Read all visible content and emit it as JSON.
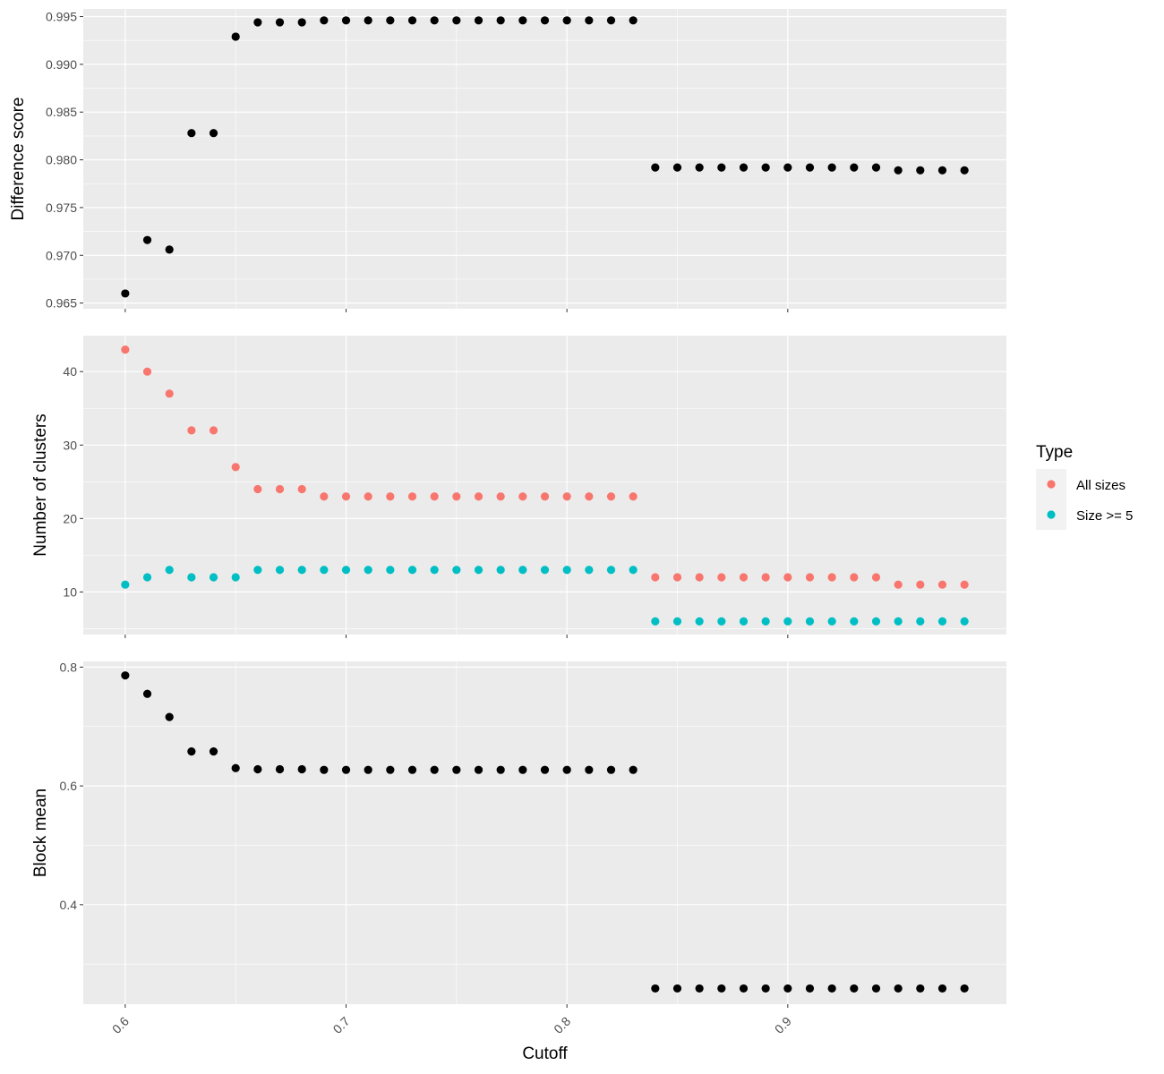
{
  "chart_data": {
    "type": "scatter",
    "title": "",
    "xlabel": "Cutoff",
    "x_ticks": [
      "0.6",
      "0.7",
      "0.8",
      "0.9"
    ],
    "x_tick_values": [
      0.6,
      0.7,
      0.8,
      0.9
    ],
    "xlim": [
      0.581,
      0.999
    ],
    "x": [
      0.6,
      0.61,
      0.62,
      0.63,
      0.64,
      0.65,
      0.66,
      0.67,
      0.68,
      0.69,
      0.7,
      0.71,
      0.72,
      0.73,
      0.74,
      0.75,
      0.76,
      0.77,
      0.78,
      0.79,
      0.8,
      0.81,
      0.82,
      0.83,
      0.84,
      0.85,
      0.86,
      0.87,
      0.88,
      0.89,
      0.9,
      0.91,
      0.92,
      0.93,
      0.94,
      0.95,
      0.96,
      0.97,
      0.98
    ],
    "grid": true,
    "legend_position": "right",
    "legend": {
      "title": "Type",
      "entries": [
        {
          "label": "All sizes",
          "color": "#F8766D"
        },
        {
          "label": "Size >= 5",
          "color": "#00BFC4"
        }
      ]
    },
    "panels": [
      {
        "ylabel": "Difference score",
        "ylim": [
          0.9644,
          0.9958
        ],
        "y_ticks": [
          "0.965",
          "0.970",
          "0.975",
          "0.980",
          "0.985",
          "0.990",
          "0.995"
        ],
        "y_tick_values": [
          0.965,
          0.97,
          0.975,
          0.98,
          0.985,
          0.99,
          0.995
        ],
        "series": [
          {
            "color": "#000000",
            "values": [
              0.966,
              0.9716,
              0.9706,
              0.9828,
              0.9828,
              0.9929,
              0.9944,
              0.9944,
              0.9944,
              0.9946,
              0.9946,
              0.9946,
              0.9946,
              0.9946,
              0.9946,
              0.9946,
              0.9946,
              0.9946,
              0.9946,
              0.9946,
              0.9946,
              0.9946,
              0.9946,
              0.9946,
              0.9792,
              0.9792,
              0.9792,
              0.9792,
              0.9792,
              0.9792,
              0.9792,
              0.9792,
              0.9792,
              0.9792,
              0.9792,
              0.9789,
              0.9789,
              0.9789,
              0.9789
            ]
          }
        ]
      },
      {
        "ylabel": "Number of clusters",
        "ylim": [
          4.2,
          44.9
        ],
        "y_ticks": [
          "10",
          "20",
          "30",
          "40"
        ],
        "y_tick_values": [
          10,
          20,
          30,
          40
        ],
        "series": [
          {
            "name": "All sizes",
            "color": "#F8766D",
            "values": [
              43,
              40,
              37,
              32,
              32,
              27,
              24,
              24,
              24,
              23,
              23,
              23,
              23,
              23,
              23,
              23,
              23,
              23,
              23,
              23,
              23,
              23,
              23,
              23,
              12,
              12,
              12,
              12,
              12,
              12,
              12,
              12,
              12,
              12,
              12,
              11,
              11,
              11,
              11
            ]
          },
          {
            "name": "Size >= 5",
            "color": "#00BFC4",
            "values": [
              11,
              12,
              13,
              12,
              12,
              12,
              13,
              13,
              13,
              13,
              13,
              13,
              13,
              13,
              13,
              13,
              13,
              13,
              13,
              13,
              13,
              13,
              13,
              13,
              6,
              6,
              6,
              6,
              6,
              6,
              6,
              6,
              6,
              6,
              6,
              6,
              6,
              6,
              6
            ]
          }
        ]
      },
      {
        "ylabel": "Block mean",
        "ylim": [
          0.2325,
          0.8096
        ],
        "y_ticks": [
          "0.4",
          "0.6",
          "0.8"
        ],
        "y_tick_values": [
          0.4,
          0.6,
          0.8
        ],
        "series": [
          {
            "color": "#000000",
            "values": [
              0.786,
              0.755,
              0.716,
              0.658,
              0.658,
              0.63,
              0.628,
              0.628,
              0.628,
              0.627,
              0.627,
              0.627,
              0.627,
              0.627,
              0.627,
              0.627,
              0.627,
              0.627,
              0.627,
              0.627,
              0.627,
              0.627,
              0.627,
              0.627,
              0.259,
              0.259,
              0.259,
              0.259,
              0.259,
              0.259,
              0.259,
              0.259,
              0.259,
              0.259,
              0.259,
              0.259,
              0.259,
              0.259,
              0.259
            ]
          }
        ]
      }
    ]
  }
}
